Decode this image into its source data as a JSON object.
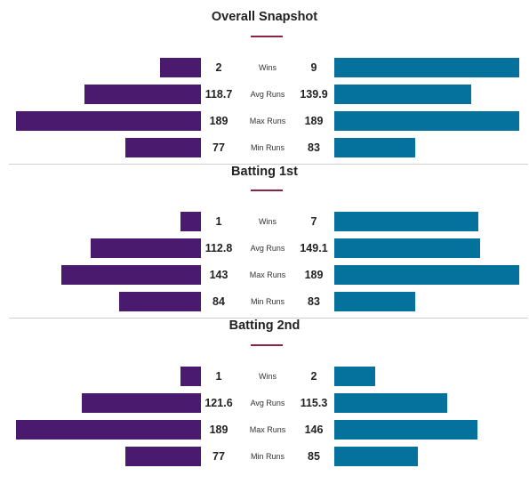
{
  "colors": {
    "team_left": "#4a1a6e",
    "team_right": "#05729e",
    "accent": "#8a2244"
  },
  "scale_max": 189,
  "sections": [
    {
      "title": "Overall Snapshot",
      "rows": [
        {
          "label": "Wins",
          "left": "2",
          "right": "9",
          "left_num": 2,
          "right_num": 9,
          "max": 9
        },
        {
          "label": "Avg Runs",
          "left": "118.7",
          "right": "139.9",
          "left_num": 118.7,
          "right_num": 139.9,
          "max": 189
        },
        {
          "label": "Max Runs",
          "left": "189",
          "right": "189",
          "left_num": 189,
          "right_num": 189,
          "max": 189
        },
        {
          "label": "Min Runs",
          "left": "77",
          "right": "83",
          "left_num": 77,
          "right_num": 83,
          "max": 189
        }
      ]
    },
    {
      "title": "Batting 1st",
      "rows": [
        {
          "label": "Wins",
          "left": "1",
          "right": "7",
          "left_num": 1,
          "right_num": 7,
          "max": 9
        },
        {
          "label": "Avg Runs",
          "left": "112.8",
          "right": "149.1",
          "left_num": 112.8,
          "right_num": 149.1,
          "max": 189
        },
        {
          "label": "Max Runs",
          "left": "143",
          "right": "189",
          "left_num": 143,
          "right_num": 189,
          "max": 189
        },
        {
          "label": "Min Runs",
          "left": "84",
          "right": "83",
          "left_num": 84,
          "right_num": 83,
          "max": 189
        }
      ]
    },
    {
      "title": "Batting 2nd",
      "rows": [
        {
          "label": "Wins",
          "left": "1",
          "right": "2",
          "left_num": 1,
          "right_num": 2,
          "max": 9
        },
        {
          "label": "Avg Runs",
          "left": "121.6",
          "right": "115.3",
          "left_num": 121.6,
          "right_num": 115.3,
          "max": 189
        },
        {
          "label": "Max Runs",
          "left": "189",
          "right": "146",
          "left_num": 189,
          "right_num": 146,
          "max": 189
        },
        {
          "label": "Min Runs",
          "left": "77",
          "right": "85",
          "left_num": 77,
          "right_num": 85,
          "max": 189
        }
      ]
    }
  ]
}
